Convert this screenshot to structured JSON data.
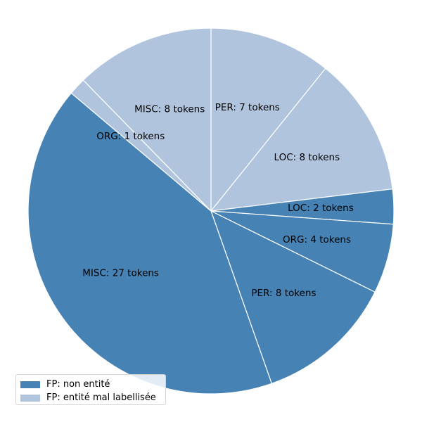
{
  "chart_data": {
    "type": "pie",
    "title": "",
    "slices": [
      {
        "label": "PER: 7 tokens",
        "value": 7,
        "group": "FP: entité mal labellisée"
      },
      {
        "label": "LOC: 8 tokens",
        "value": 8,
        "group": "FP: entité mal labellisée"
      },
      {
        "label": "LOC: 2 tokens",
        "value": 2,
        "group": "FP: non entité"
      },
      {
        "label": "ORG: 4 tokens",
        "value": 4,
        "group": "FP: non entité"
      },
      {
        "label": "PER: 8 tokens",
        "value": 8,
        "group": "FP: non entité"
      },
      {
        "label": "MISC: 27 tokens",
        "value": 27,
        "group": "FP: non entité"
      },
      {
        "label": "ORG: 1 tokens",
        "value": 1,
        "group": "FP: entité mal labellisée"
      },
      {
        "label": "MISC: 8 tokens",
        "value": 8,
        "group": "FP: entité mal labellisée"
      }
    ],
    "start": "12 o'clock",
    "direction": "clockwise",
    "legend": {
      "placement": "lower-left",
      "entries": [
        {
          "label": "FP: non entité",
          "color": "#4682b4"
        },
        {
          "label": "FP: entité mal labellisée",
          "color": "#b0c4de"
        }
      ]
    },
    "edge_color": "#ffffff"
  }
}
